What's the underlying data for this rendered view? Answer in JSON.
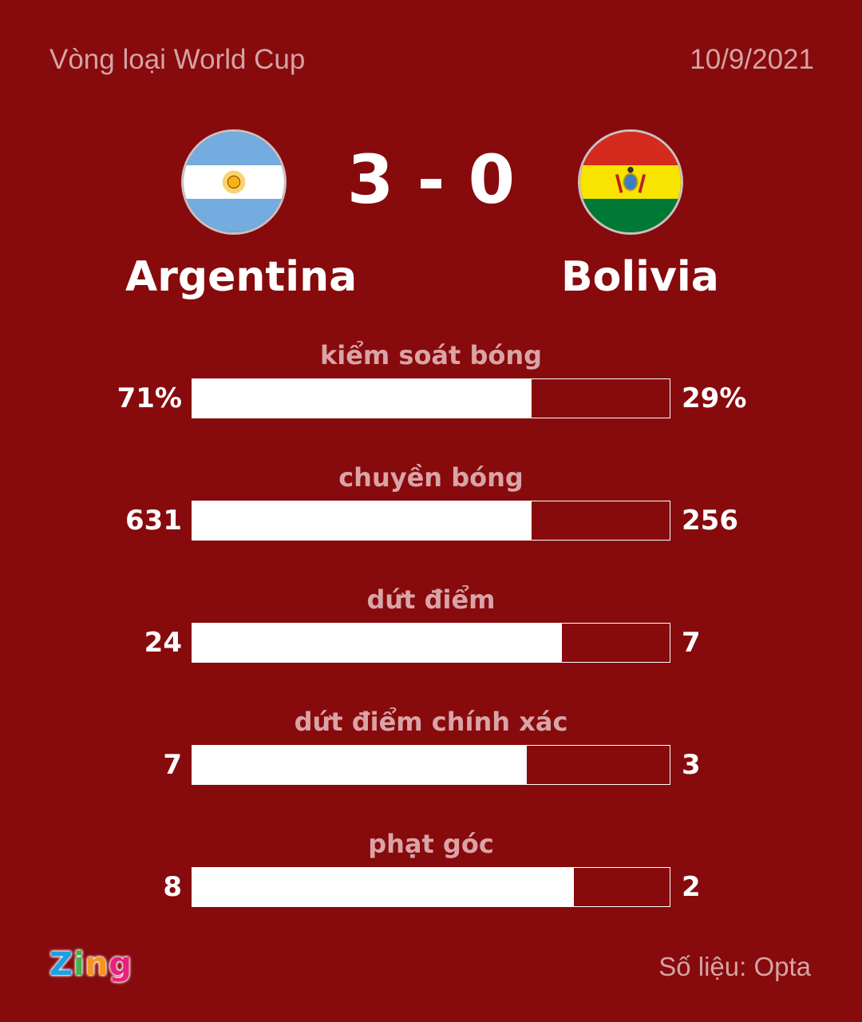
{
  "header": {
    "title": "Vòng loại World Cup",
    "date": "10/9/2021"
  },
  "match": {
    "home": {
      "name": "Argentina",
      "flag": "argentina-flag"
    },
    "away": {
      "name": "Bolivia",
      "flag": "bolivia-flag"
    },
    "score": "3 - 0"
  },
  "chart_data": {
    "type": "bar",
    "orientation": "horizontal-stacked-comparison",
    "series": [
      {
        "name": "Argentina"
      },
      {
        "name": "Bolivia"
      }
    ],
    "stats": [
      {
        "label": "kiểm soát bóng",
        "home": "71%",
        "away": "29%",
        "home_value": 71,
        "away_value": 29
      },
      {
        "label": "chuyền bóng",
        "home": "631",
        "away": "256",
        "home_value": 631,
        "away_value": 256
      },
      {
        "label": "dứt điểm",
        "home": "24",
        "away": "7",
        "home_value": 24,
        "away_value": 7
      },
      {
        "label": "dứt điểm chính xác",
        "home": "7",
        "away": "3",
        "home_value": 7,
        "away_value": 3
      },
      {
        "label": "phạt góc",
        "home": "8",
        "away": "2",
        "home_value": 8,
        "away_value": 2
      }
    ]
  },
  "footer": {
    "logo": "Zing",
    "source": "Số liệu: Opta"
  },
  "colors": {
    "background": "#870a0d",
    "bar_fill": "#ffffff",
    "label": "#d9a4a6"
  }
}
